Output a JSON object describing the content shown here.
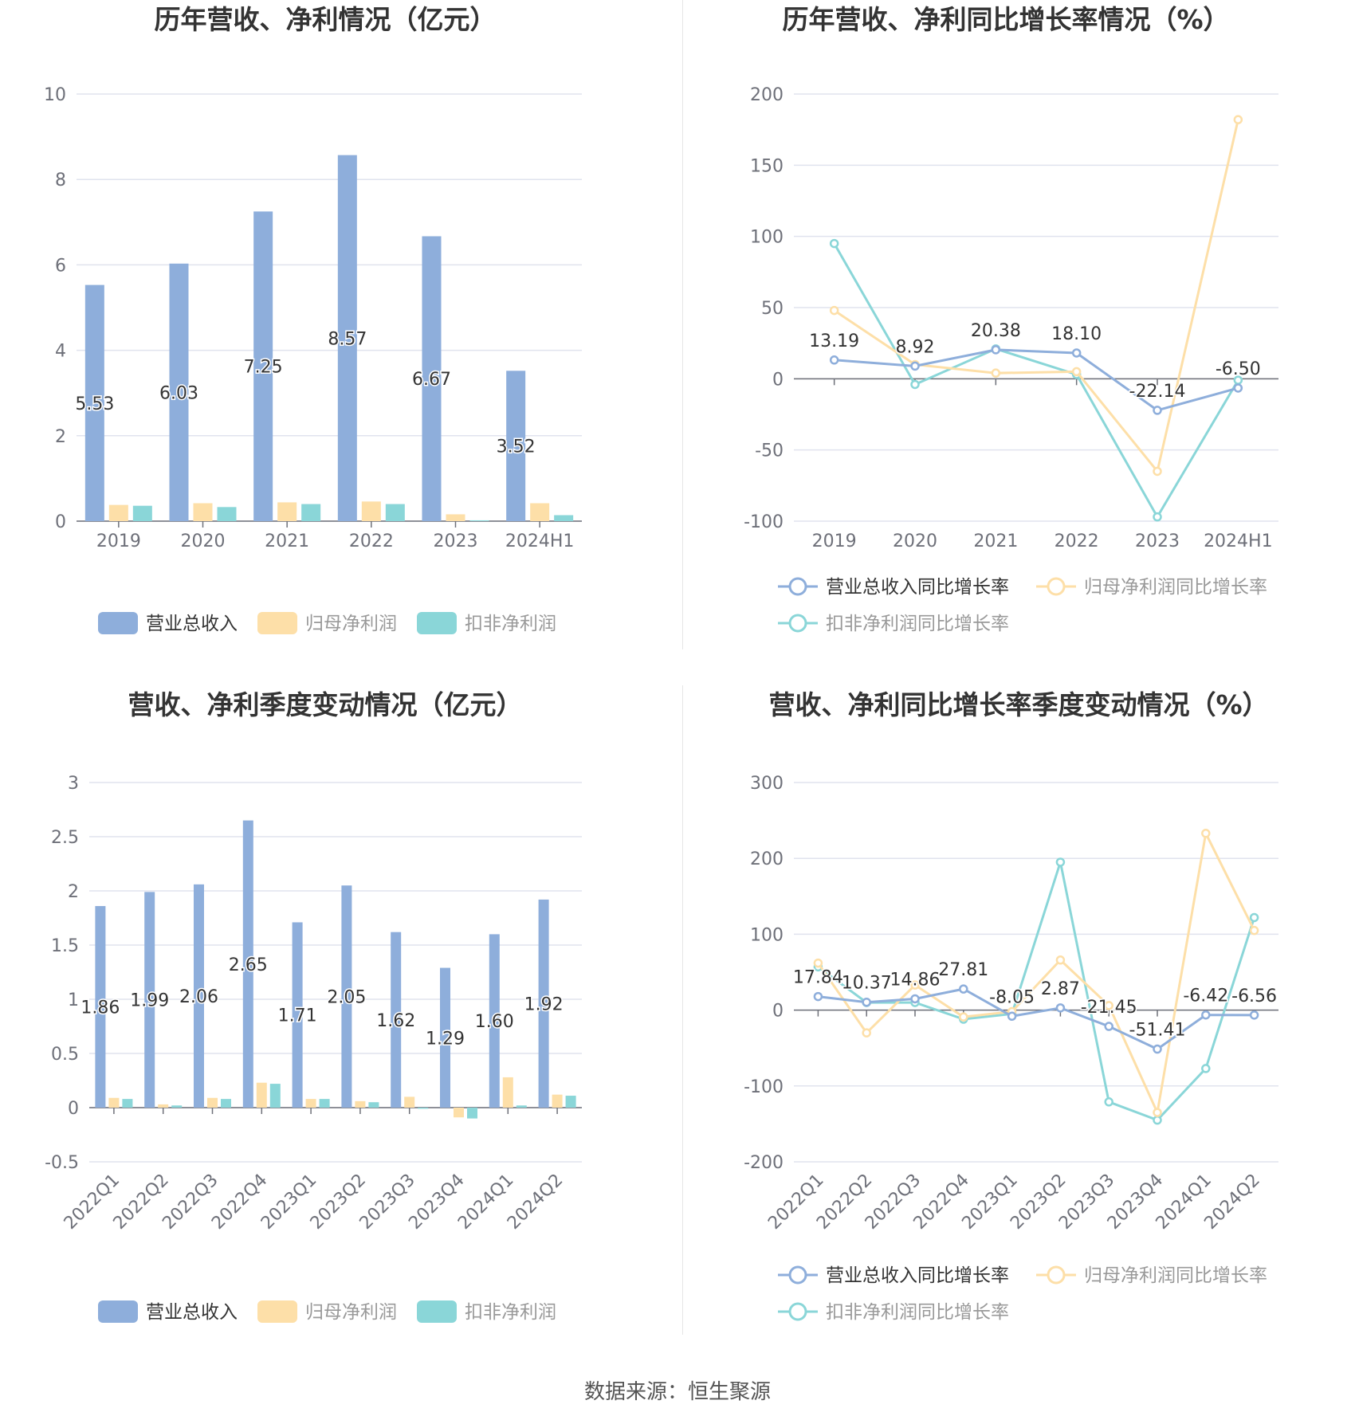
{
  "footer": "数据来源：恒生聚源",
  "colors": {
    "revenue": "#8eaedb",
    "net_profit": "#fddfa8",
    "deducted_profit": "#8ad6d8",
    "grid": "#e0e3ee",
    "axis": "#6e7079",
    "text": "#333333"
  },
  "chart_data": [
    {
      "type": "bar",
      "title": "历年营收、净利情况（亿元）",
      "categories": [
        "2019",
        "2020",
        "2021",
        "2022",
        "2023",
        "2024H1"
      ],
      "ylim": [
        0,
        10
      ],
      "yticks": [
        0,
        2,
        4,
        6,
        8,
        10
      ],
      "legend": "bottom",
      "series": [
        {
          "name": "营业总收入",
          "values": [
            5.53,
            6.03,
            7.25,
            8.57,
            6.67,
            3.52
          ],
          "labels": [
            "5.53",
            "6.03",
            "7.25",
            "8.57",
            "6.67",
            "3.52"
          ]
        },
        {
          "name": "归母净利润",
          "values": [
            0.38,
            0.42,
            0.44,
            0.46,
            0.16,
            0.42
          ]
        },
        {
          "name": "扣非净利润",
          "values": [
            0.36,
            0.33,
            0.4,
            0.4,
            0.02,
            0.14
          ]
        }
      ]
    },
    {
      "type": "line",
      "title": "历年营收、净利同比增长率情况（%）",
      "categories": [
        "2019",
        "2020",
        "2021",
        "2022",
        "2023",
        "2024H1"
      ],
      "ylim": [
        -100,
        200
      ],
      "yticks": [
        -100,
        -50,
        0,
        50,
        100,
        150,
        200
      ],
      "legend": "bottom",
      "series": [
        {
          "name": "营业总收入同比增长率",
          "values": [
            13.19,
            8.92,
            20.38,
            18.1,
            -22.14,
            -6.5
          ],
          "labels": [
            "13.19",
            "8.92",
            "20.38",
            "18.10",
            "-22.14",
            "-6.50"
          ]
        },
        {
          "name": "归母净利润同比增长率",
          "values": [
            48,
            10,
            4,
            5,
            -65,
            182
          ]
        },
        {
          "name": "扣非净利润同比增长率",
          "values": [
            95,
            -4,
            21,
            3,
            -97,
            -1
          ]
        }
      ]
    },
    {
      "type": "bar",
      "title": "营收、净利季度变动情况（亿元）",
      "categories": [
        "2022Q1",
        "2022Q2",
        "2022Q3",
        "2022Q4",
        "2023Q1",
        "2023Q2",
        "2023Q3",
        "2023Q4",
        "2024Q1",
        "2024Q2"
      ],
      "ylim": [
        -0.5,
        3
      ],
      "yticks": [
        -0.5,
        0,
        0.5,
        1,
        1.5,
        2,
        2.5,
        3
      ],
      "legend": "bottom",
      "series": [
        {
          "name": "营业总收入",
          "values": [
            1.86,
            1.99,
            2.06,
            2.65,
            1.71,
            2.05,
            1.62,
            1.29,
            1.6,
            1.92
          ],
          "labels": [
            "1.86",
            "1.99",
            "2.06",
            "2.65",
            "1.71",
            "2.05",
            "1.62",
            "1.29",
            "1.60",
            "1.92"
          ]
        },
        {
          "name": "归母净利润",
          "values": [
            0.09,
            0.03,
            0.09,
            0.23,
            0.08,
            0.06,
            0.1,
            -0.09,
            0.28,
            0.12
          ]
        },
        {
          "name": "扣非净利润",
          "values": [
            0.08,
            0.02,
            0.08,
            0.22,
            0.08,
            0.05,
            -0.01,
            -0.1,
            0.02,
            0.11
          ]
        }
      ]
    },
    {
      "type": "line",
      "title": "营收、净利同比增长率季度变动情况（%）",
      "categories": [
        "2022Q1",
        "2022Q2",
        "2022Q3",
        "2022Q4",
        "2023Q1",
        "2023Q2",
        "2023Q3",
        "2023Q4",
        "2024Q1",
        "2024Q2"
      ],
      "ylim": [
        -200,
        300
      ],
      "yticks": [
        -200,
        -100,
        0,
        100,
        200,
        300
      ],
      "legend": "bottom",
      "series": [
        {
          "name": "营业总收入同比增长率",
          "values": [
            17.84,
            10.37,
            14.86,
            27.81,
            -8.05,
            2.87,
            -21.45,
            -51.41,
            -6.42,
            -6.56
          ],
          "labels": [
            "17.84",
            "10.37",
            "14.86",
            "27.81",
            "-8.05",
            "2.87",
            "-21.45",
            "-51.41",
            "-6.42",
            "-6.56"
          ]
        },
        {
          "name": "归母净利润同比增长率",
          "values": [
            62,
            -30,
            33,
            -9,
            -2,
            66,
            6,
            -135,
            233,
            105
          ]
        },
        {
          "name": "扣非净利润同比增长率",
          "values": [
            57,
            10,
            10,
            -12,
            -5,
            195,
            -121,
            -145,
            -77,
            122
          ]
        }
      ]
    }
  ]
}
